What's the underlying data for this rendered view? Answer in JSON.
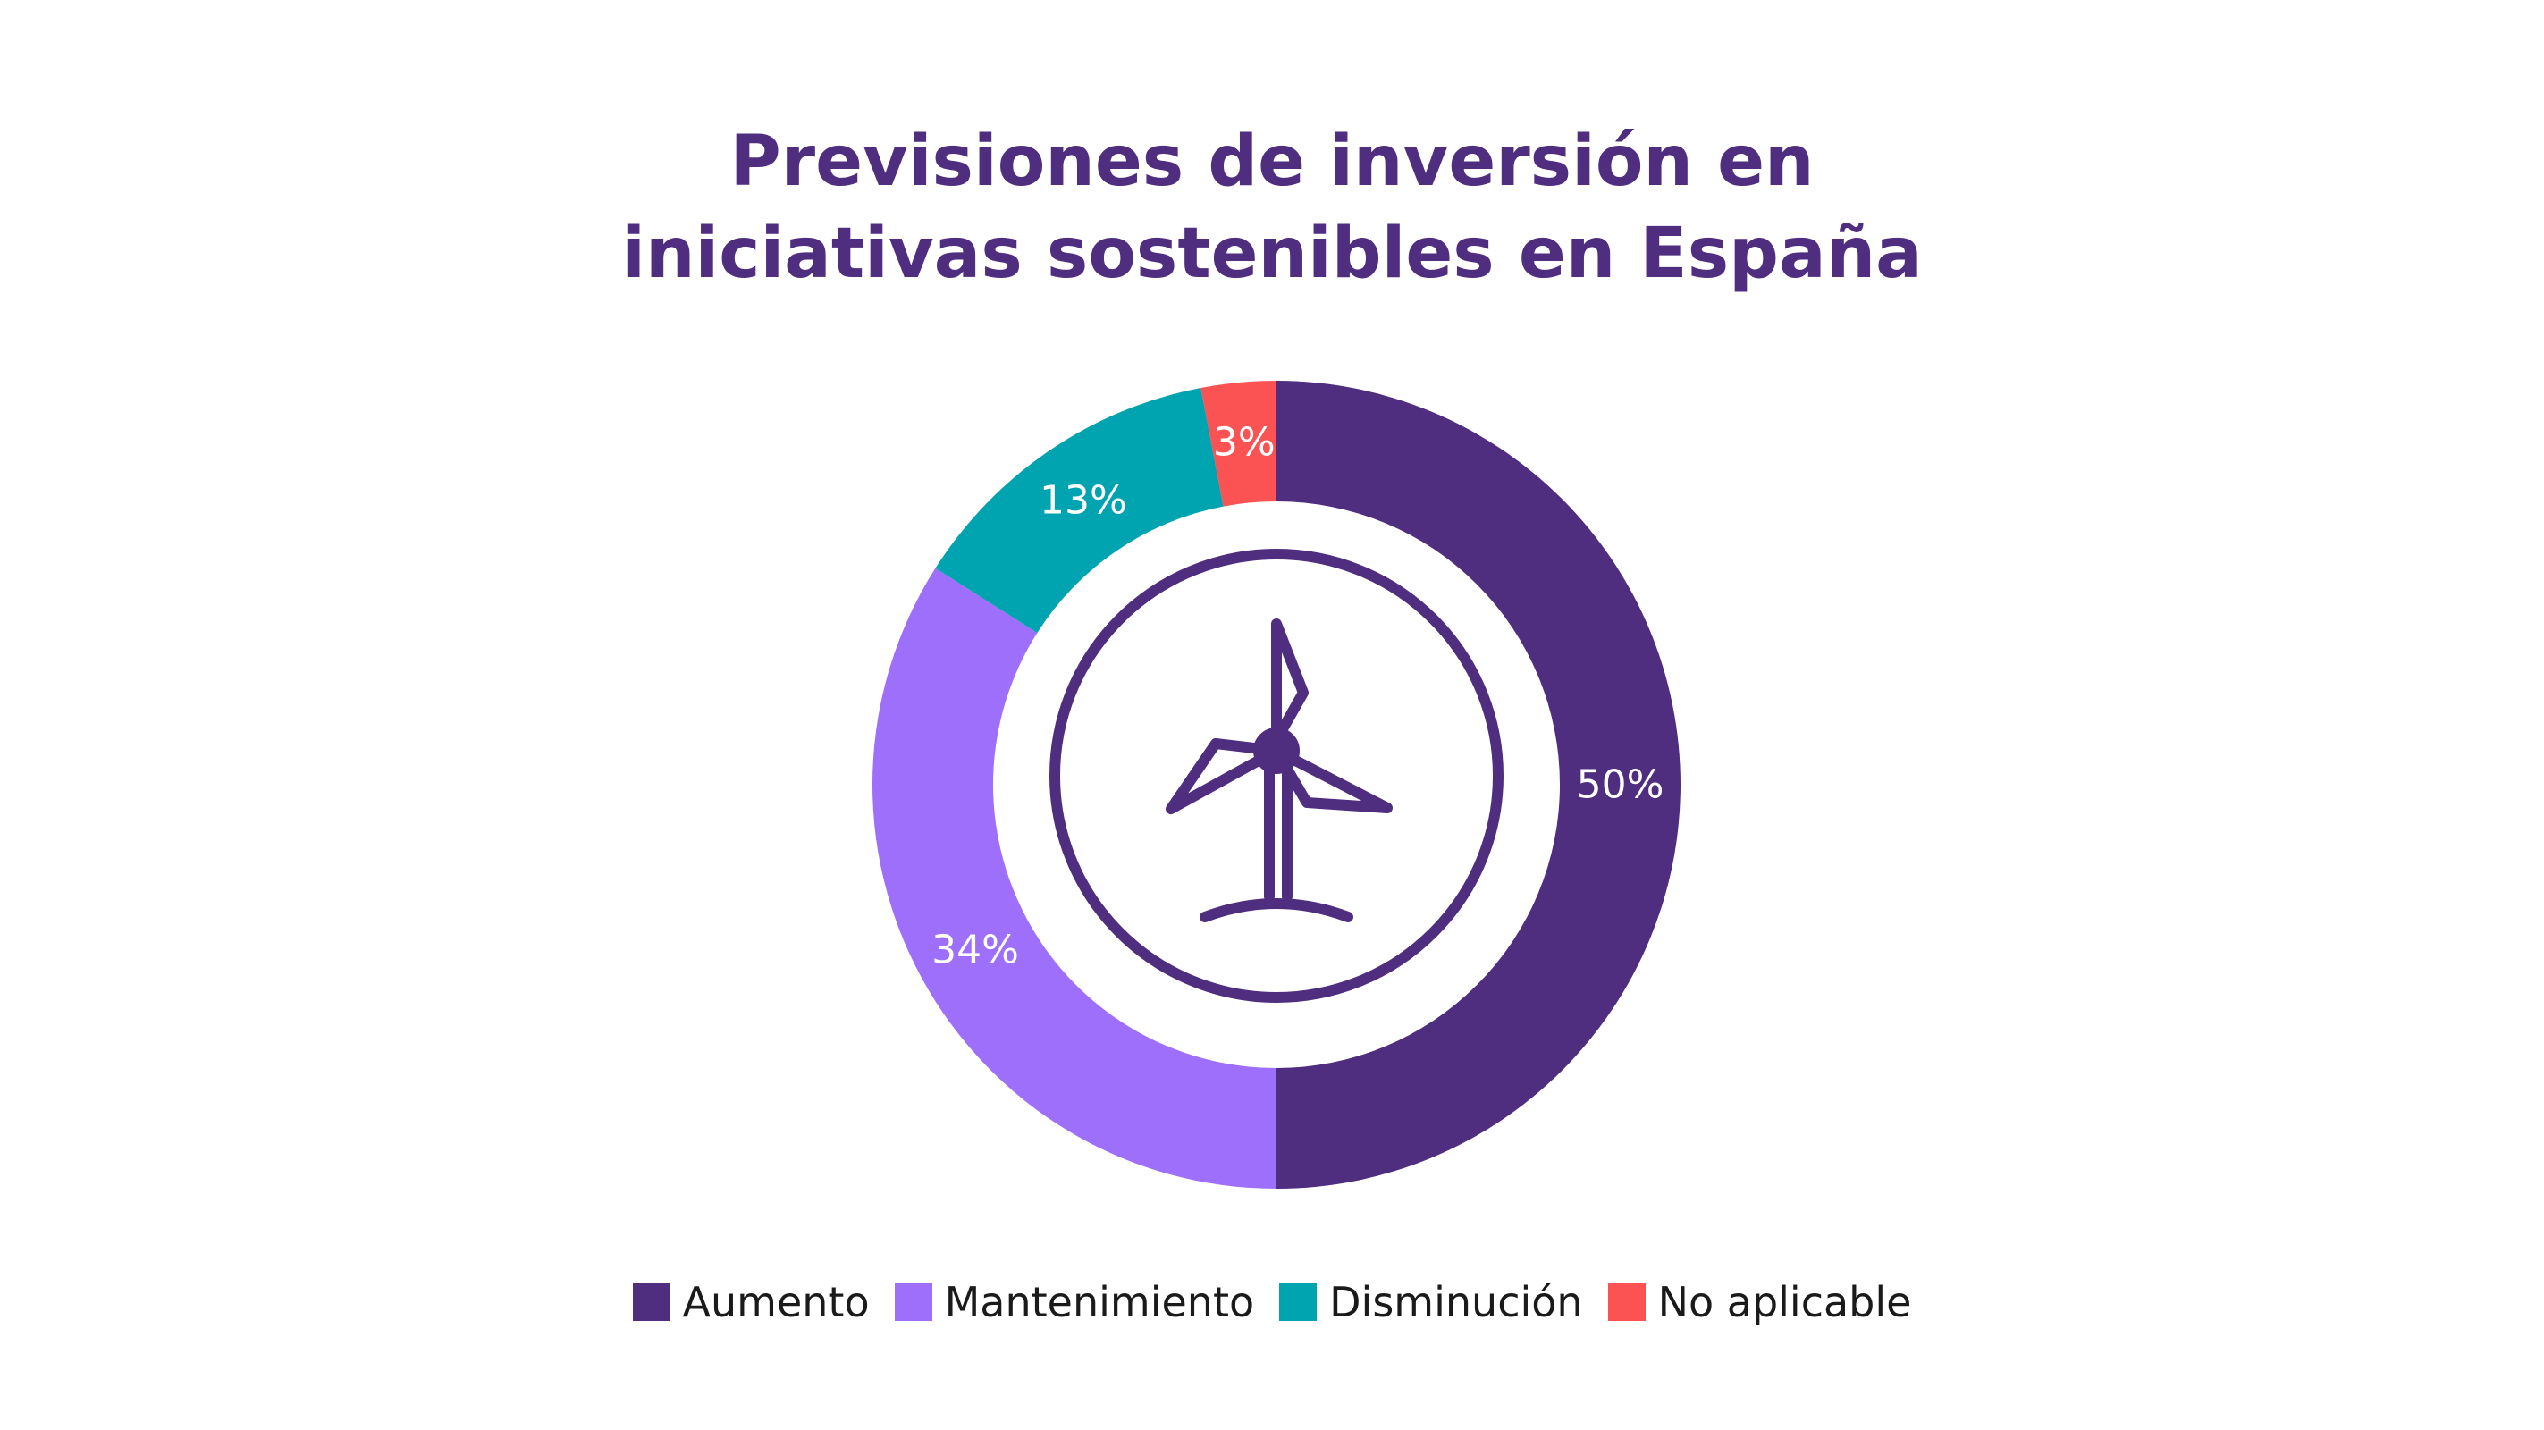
{
  "chart_data": {
    "type": "pie",
    "title": "Previsiones de inversión en iniciativas sostenibles en España",
    "title_lines": [
      "Previsiones de inversión en",
      "iniciativas sostenibles en España"
    ],
    "donut": true,
    "categories": [
      "Aumento",
      "Mantenimiento",
      "Disminución",
      "No aplicable"
    ],
    "values": [
      50,
      34,
      13,
      3
    ],
    "labels": [
      "50%",
      "34%",
      "13%",
      "3%"
    ],
    "colors": [
      "#4f2d7f",
      "#9d6ffb",
      "#00a3b0",
      "#fb5253"
    ],
    "legend_position": "bottom",
    "center_icon": "wind-turbine-icon"
  },
  "theme": {
    "title_color": "#4f2d7f",
    "label_color": "#ffffff",
    "icon_color": "#4f2d7f"
  }
}
